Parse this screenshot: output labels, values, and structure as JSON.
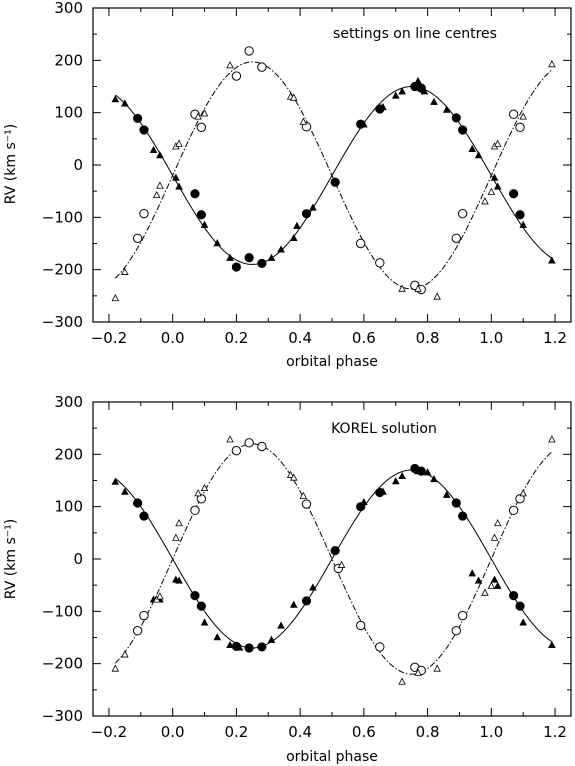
{
  "chart_data": [
    {
      "type": "scatter",
      "title": "settings on line centres",
      "xlabel": "orbital phase",
      "ylabel": "RV (km s⁻¹)",
      "xlim": [
        -0.25,
        1.25
      ],
      "ylim": [
        -300,
        300
      ],
      "xticks": [
        -0.2,
        0.0,
        0.2,
        0.4,
        0.6,
        0.8,
        1.0,
        1.2
      ],
      "xtick_labels": [
        "−0.2",
        "0.0",
        "0.2",
        "0.4",
        "0.6",
        "0.8",
        "1.0",
        "1.2"
      ],
      "yticks": [
        -300,
        -200,
        -100,
        0,
        100,
        200,
        300
      ],
      "ytick_labels": [
        "−300",
        "−200",
        "−100",
        "0",
        "100",
        "200",
        "300"
      ],
      "grid": false,
      "curves": [
        {
          "style": "solid",
          "gamma": -20,
          "K": 170,
          "peak_phase": 0.75
        },
        {
          "style": "dash-dot",
          "gamma": -20,
          "K": 217,
          "peak_phase": 0.25
        }
      ],
      "series": [
        {
          "marker": "filled-circle",
          "points": [
            [
              -0.11,
              89
            ],
            [
              -0.09,
              67
            ],
            [
              0.07,
              -55
            ],
            [
              0.09,
              -95
            ],
            [
              0.2,
              -195
            ],
            [
              0.24,
              -177
            ],
            [
              0.28,
              -188
            ],
            [
              0.42,
              -93
            ],
            [
              0.51,
              -33
            ],
            [
              0.59,
              78
            ],
            [
              0.65,
              107
            ],
            [
              0.76,
              150
            ],
            [
              0.78,
              147
            ],
            [
              0.89,
              90
            ],
            [
              0.91,
              67
            ],
            [
              1.07,
              -55
            ],
            [
              1.09,
              -95
            ]
          ]
        },
        {
          "marker": "open-circle",
          "points": [
            [
              -0.11,
              -140
            ],
            [
              -0.09,
              -93
            ],
            [
              0.07,
              97
            ],
            [
              0.09,
              72
            ],
            [
              0.2,
              170
            ],
            [
              0.24,
              218
            ],
            [
              0.28,
              187
            ],
            [
              0.42,
              73
            ],
            [
              0.59,
              -150
            ],
            [
              0.65,
              -187
            ],
            [
              0.76,
              -230
            ],
            [
              0.78,
              -238
            ],
            [
              0.89,
              -140
            ],
            [
              0.91,
              -93
            ],
            [
              1.07,
              97
            ],
            [
              1.09,
              72
            ]
          ]
        },
        {
          "marker": "filled-triangle",
          "points": [
            [
              -0.18,
              125
            ],
            [
              -0.15,
              117
            ],
            [
              -0.06,
              28
            ],
            [
              -0.04,
              18
            ],
            [
              0.01,
              -25
            ],
            [
              0.02,
              -42
            ],
            [
              0.1,
              -115
            ],
            [
              0.14,
              -150
            ],
            [
              0.18,
              -178
            ],
            [
              0.31,
              -178
            ],
            [
              0.34,
              -162
            ],
            [
              0.38,
              -140
            ],
            [
              0.39,
              -117
            ],
            [
              0.44,
              -82
            ],
            [
              0.6,
              77
            ],
            [
              0.66,
              110
            ],
            [
              0.7,
              132
            ],
            [
              0.72,
              140
            ],
            [
              0.77,
              160
            ],
            [
              0.79,
              140
            ],
            [
              0.82,
              120
            ],
            [
              0.86,
              105
            ],
            [
              0.94,
              30
            ],
            [
              0.96,
              18
            ],
            [
              1.01,
              -25
            ],
            [
              1.02,
              -42
            ],
            [
              1.1,
              -115
            ],
            [
              1.19,
              -183
            ]
          ]
        },
        {
          "marker": "open-triangle",
          "points": [
            [
              -0.18,
              -255
            ],
            [
              -0.15,
              -205
            ],
            [
              -0.05,
              -58
            ],
            [
              -0.04,
              -40
            ],
            [
              0.01,
              35
            ],
            [
              0.02,
              40
            ],
            [
              0.08,
              92
            ],
            [
              0.1,
              98
            ],
            [
              0.18,
              190
            ],
            [
              0.37,
              130
            ],
            [
              0.38,
              128
            ],
            [
              0.41,
              82
            ],
            [
              0.72,
              -237
            ],
            [
              0.77,
              -237
            ],
            [
              0.83,
              -252
            ],
            [
              0.98,
              -70
            ],
            [
              1.0,
              -52
            ],
            [
              1.01,
              35
            ],
            [
              1.02,
              40
            ],
            [
              1.1,
              92
            ],
            [
              1.19,
              192
            ]
          ]
        }
      ]
    },
    {
      "type": "scatter",
      "title": "KOREL solution",
      "xlabel": "orbital phase",
      "ylabel": "RV (km s⁻¹)",
      "xlim": [
        -0.25,
        1.25
      ],
      "ylim": [
        -300,
        300
      ],
      "xticks": [
        -0.2,
        0.0,
        0.2,
        0.4,
        0.6,
        0.8,
        1.0,
        1.2
      ],
      "xtick_labels": [
        "−0.2",
        "0.0",
        "0.2",
        "0.4",
        "0.6",
        "0.8",
        "1.0",
        "1.2"
      ],
      "yticks": [
        -300,
        -200,
        -100,
        0,
        100,
        200,
        300
      ],
      "ytick_labels": [
        "−300",
        "−200",
        "−100",
        "0",
        "100",
        "200",
        "300"
      ],
      "grid": false,
      "curves": [
        {
          "style": "solid",
          "gamma": 0,
          "K": 170,
          "peak_phase": 0.75
        },
        {
          "style": "dash-dot",
          "gamma": 0,
          "K": 220,
          "peak_phase": 0.25
        }
      ],
      "series": [
        {
          "marker": "filled-circle",
          "points": [
            [
              -0.11,
              107
            ],
            [
              -0.09,
              82
            ],
            [
              0.07,
              -70
            ],
            [
              0.09,
              -90
            ],
            [
              0.2,
              -167
            ],
            [
              0.24,
              -170
            ],
            [
              0.28,
              -168
            ],
            [
              0.42,
              -80
            ],
            [
              0.51,
              16
            ],
            [
              0.59,
              100
            ],
            [
              0.65,
              127
            ],
            [
              0.76,
              173
            ],
            [
              0.78,
              168
            ],
            [
              0.89,
              107
            ],
            [
              0.91,
              82
            ],
            [
              1.07,
              -70
            ],
            [
              1.09,
              -90
            ]
          ]
        },
        {
          "marker": "open-circle",
          "points": [
            [
              -0.11,
              -137
            ],
            [
              -0.09,
              -108
            ],
            [
              0.07,
              93
            ],
            [
              0.09,
              115
            ],
            [
              0.2,
              207
            ],
            [
              0.24,
              222
            ],
            [
              0.28,
              215
            ],
            [
              0.42,
              105
            ],
            [
              0.52,
              -18
            ],
            [
              0.59,
              -127
            ],
            [
              0.65,
              -168
            ],
            [
              0.76,
              -207
            ],
            [
              0.78,
              -213
            ],
            [
              0.89,
              -137
            ],
            [
              0.91,
              -108
            ],
            [
              1.07,
              93
            ],
            [
              1.09,
              115
            ]
          ]
        },
        {
          "marker": "filled-triangle",
          "points": [
            [
              -0.18,
              147
            ],
            [
              -0.15,
              128
            ],
            [
              -0.06,
              -78
            ],
            [
              -0.04,
              -78
            ],
            [
              0.01,
              -40
            ],
            [
              0.02,
              -42
            ],
            [
              0.1,
              -122
            ],
            [
              0.14,
              -150
            ],
            [
              0.18,
              -165
            ],
            [
              0.21,
              -170
            ],
            [
              0.31,
              -155
            ],
            [
              0.34,
              -128
            ],
            [
              0.38,
              -88
            ],
            [
              0.44,
              -55
            ],
            [
              0.6,
              108
            ],
            [
              0.66,
              128
            ],
            [
              0.7,
              148
            ],
            [
              0.72,
              158
            ],
            [
              0.77,
              167
            ],
            [
              0.8,
              165
            ],
            [
              0.82,
              152
            ],
            [
              0.86,
              122
            ],
            [
              0.94,
              -28
            ],
            [
              0.96,
              -42
            ],
            [
              1.01,
              -40
            ],
            [
              1.02,
              -52
            ],
            [
              1.1,
              -122
            ],
            [
              1.19,
              -165
            ]
          ]
        },
        {
          "marker": "open-triangle",
          "points": [
            [
              -0.18,
              -210
            ],
            [
              -0.15,
              -183
            ],
            [
              -0.05,
              -78
            ],
            [
              -0.04,
              -72
            ],
            [
              0.01,
              40
            ],
            [
              0.02,
              68
            ],
            [
              0.08,
              125
            ],
            [
              0.1,
              135
            ],
            [
              0.18,
              228
            ],
            [
              0.37,
              160
            ],
            [
              0.38,
              155
            ],
            [
              0.41,
              120
            ],
            [
              0.53,
              -12
            ],
            [
              0.72,
              -235
            ],
            [
              0.77,
              -218
            ],
            [
              0.83,
              -210
            ],
            [
              0.98,
              -65
            ],
            [
              1.0,
              -52
            ],
            [
              1.01,
              40
            ],
            [
              1.02,
              68
            ],
            [
              1.1,
              125
            ],
            [
              1.19,
              228
            ]
          ]
        }
      ]
    }
  ]
}
